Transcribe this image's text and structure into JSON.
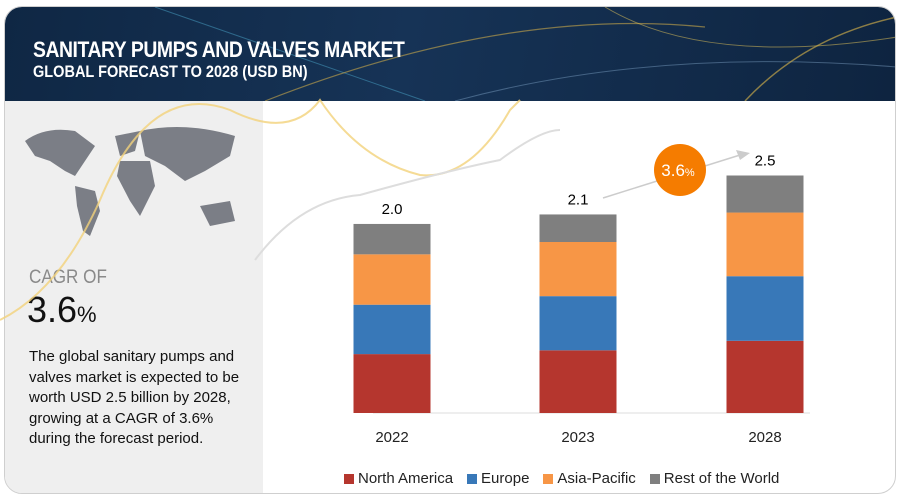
{
  "header": {
    "title": "SANITARY PUMPS AND VALVES MARKET",
    "subtitle": "GLOBAL FORECAST TO 2028 (USD BN)"
  },
  "summary": {
    "cagr_label": "CAGR OF",
    "cagr_value": "3.6",
    "cagr_unit": "%",
    "description": "The global sanitary pumps and valves market is expected to be worth USD 2.5 billion by 2028, growing at a CAGR of 3.6% during the forecast period."
  },
  "badge": {
    "value": "3.6",
    "unit": "%",
    "color": "#f57c00"
  },
  "chart_data": {
    "type": "bar",
    "stacked": true,
    "categories": [
      "2022",
      "2023",
      "2028"
    ],
    "totals": [
      "2.0",
      "2.1",
      "2.5"
    ],
    "series": [
      {
        "name": "North America",
        "color": "#b5362e",
        "values": [
          0.62,
          0.66,
          0.76
        ]
      },
      {
        "name": "Europe",
        "color": "#3878b8",
        "values": [
          0.52,
          0.57,
          0.68
        ]
      },
      {
        "name": "Asia-Pacific",
        "color": "#f79646",
        "values": [
          0.53,
          0.57,
          0.67
        ]
      },
      {
        "name": "Rest of the World",
        "color": "#7f7f7f",
        "values": [
          0.32,
          0.29,
          0.39
        ]
      }
    ],
    "grid": false,
    "legend": "bottom"
  }
}
